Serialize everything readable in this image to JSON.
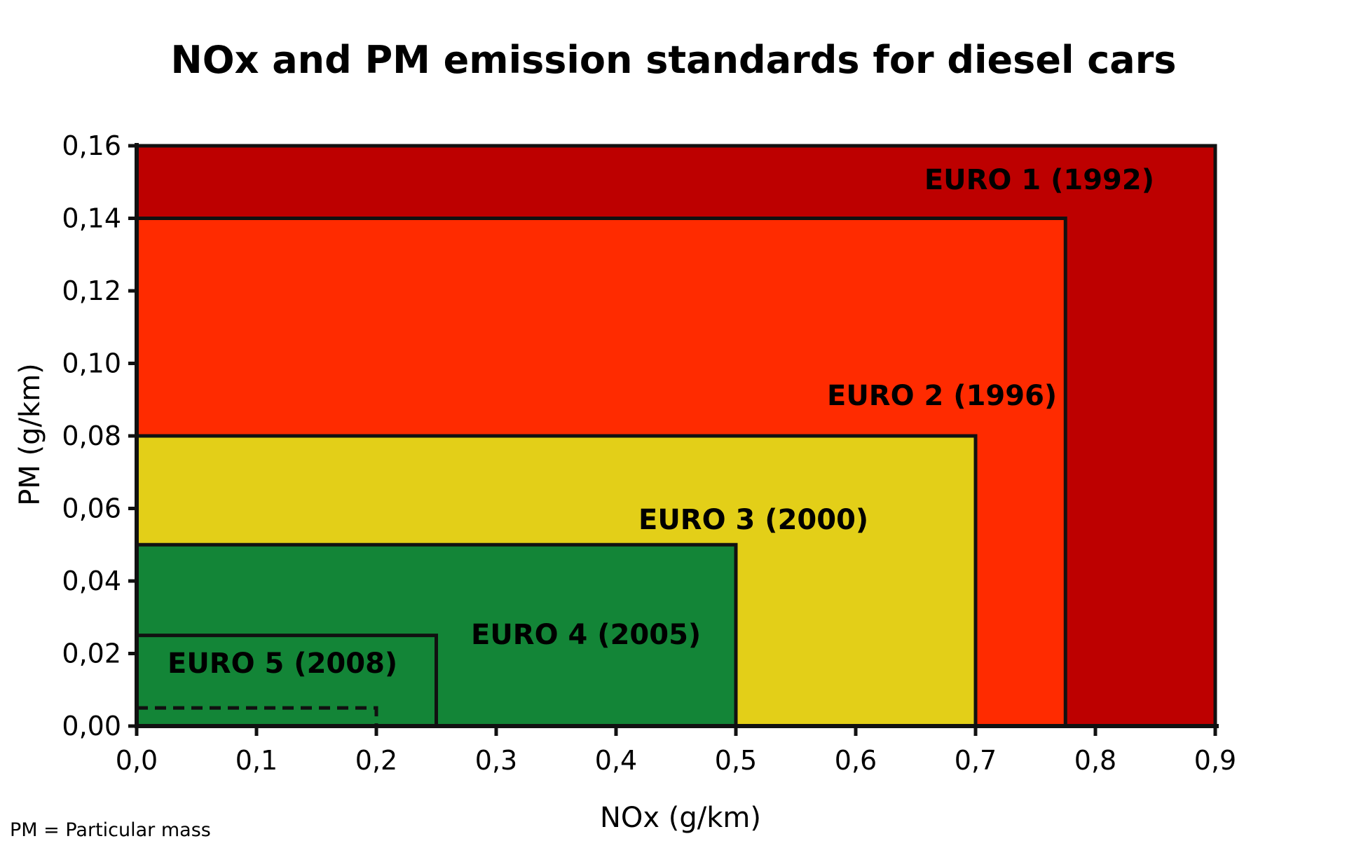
{
  "chart_data": {
    "type": "area",
    "title": "NOx and PM emission standards for diesel cars",
    "xlabel": "NOx (g/km)",
    "ylabel": "PM (g/km)",
    "xlim": [
      0,
      0.9
    ],
    "ylim": [
      0,
      0.16
    ],
    "x_ticks": [
      "0,0",
      "0,1",
      "0,2",
      "0,3",
      "0,4",
      "0,5",
      "0,6",
      "0,7",
      "0,8",
      "0,9"
    ],
    "y_ticks": [
      "0,00",
      "0,02",
      "0,04",
      "0,06",
      "0,08",
      "0,10",
      "0,12",
      "0,14",
      "0,16"
    ],
    "grid": false,
    "series": [
      {
        "name": "EURO 1 (1992)",
        "nox": 0.9,
        "pm": 0.16,
        "color": "#BD0000"
      },
      {
        "name": "EURO 2 (1996)",
        "nox": 0.775,
        "pm": 0.14,
        "color": "#FF2B00"
      },
      {
        "name": "EURO 3 (2000)",
        "nox": 0.7,
        "pm": 0.08,
        "color": "#E3CF18"
      },
      {
        "name": "EURO 4 (2005)",
        "nox": 0.5,
        "pm": 0.05,
        "color": "#138537"
      },
      {
        "name": "EURO 5 (2008)",
        "nox": 0.25,
        "pm": 0.025,
        "color": "#138537"
      },
      {
        "nox": 0.2,
        "pm": 0.005,
        "dashed": true
      }
    ],
    "footnote": "PM = Particular mass"
  }
}
